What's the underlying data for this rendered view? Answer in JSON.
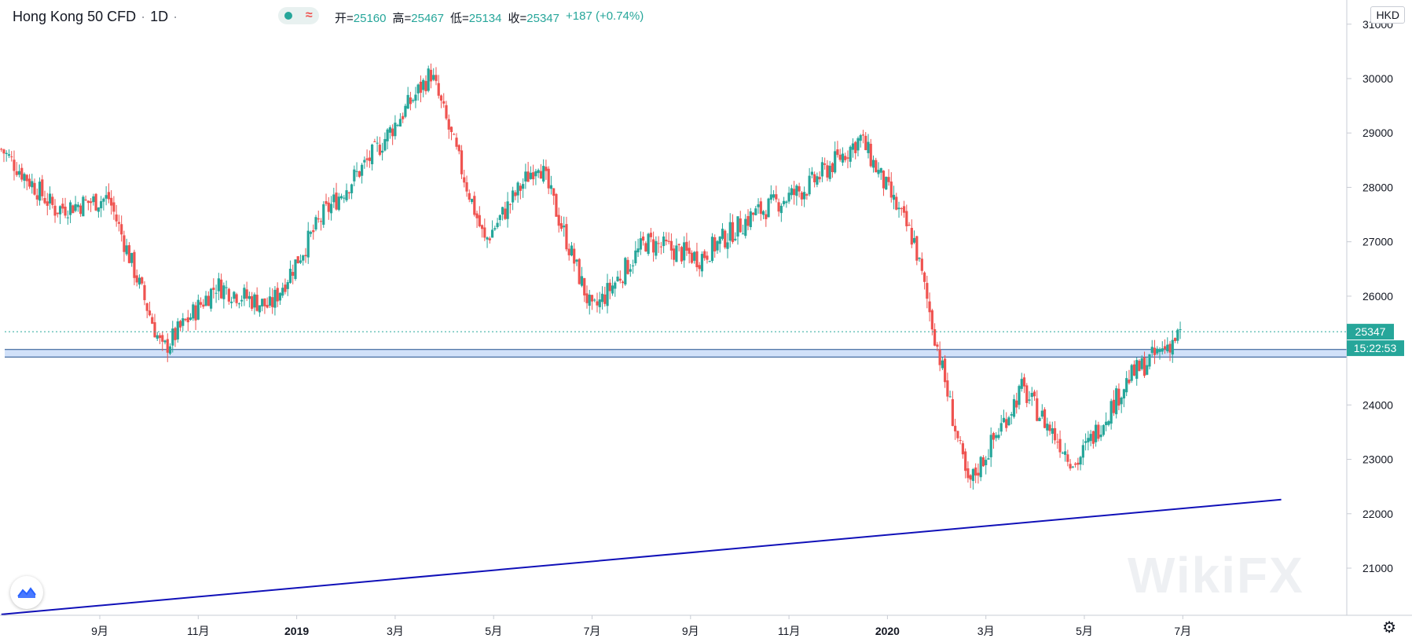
{
  "header": {
    "symbol": "Hong Kong 50 CFD",
    "interval": "1D",
    "ohlc": [
      {
        "label": "开",
        "value": "25160"
      },
      {
        "label": "高",
        "value": "25467"
      },
      {
        "label": "低",
        "value": "25134"
      },
      {
        "label": "收",
        "value": "25347"
      }
    ],
    "change": "+187 (+0.74%)",
    "currency": "HKD"
  },
  "price_label": "25347",
  "countdown_label": "15:22:53",
  "colors": {
    "up": "#26a69a",
    "down": "#ef5350",
    "trendline": "#1010b8",
    "zone": "#c6daf7",
    "zone_border": "#1f4e8c"
  },
  "icons": {
    "logo": "chart-logo-icon",
    "settings": "gear-icon"
  },
  "chart_data": {
    "type": "candlestick",
    "title": "Hong Kong 50 CFD · 1D",
    "y_axis_ticks": [
      21000,
      22000,
      23000,
      24000,
      25000,
      26000,
      27000,
      28000,
      29000,
      30000,
      31000
    ],
    "ylim": [
      20100,
      31400
    ],
    "x_axis_labels": [
      "9月",
      "11月",
      "2019",
      "3月",
      "5月",
      "7月",
      "9月",
      "11月",
      "2020",
      "3月",
      "5月",
      "7月"
    ],
    "key_points": [
      {
        "date": "2018-07",
        "close": 28700
      },
      {
        "date": "2018-08",
        "close": 27600
      },
      {
        "date": "2018-09",
        "close": 27800
      },
      {
        "date": "2018-10",
        "close": 25000
      },
      {
        "date": "2018-11",
        "close": 26200
      },
      {
        "date": "2018-12",
        "close": 25800
      },
      {
        "date": "2019-01",
        "close": 27500
      },
      {
        "date": "2019-02",
        "close": 28700
      },
      {
        "date": "2019-04",
        "close": 30100
      },
      {
        "date": "2019-05",
        "close": 27000
      },
      {
        "date": "2019-06",
        "close": 28500
      },
      {
        "date": "2019-08",
        "close": 25700
      },
      {
        "date": "2019-09",
        "close": 27000
      },
      {
        "date": "2019-10",
        "close": 26700
      },
      {
        "date": "2019-11",
        "close": 27500
      },
      {
        "date": "2019-12",
        "close": 28000
      },
      {
        "date": "2020-01",
        "close": 28900
      },
      {
        "date": "2020-02",
        "close": 27000
      },
      {
        "date": "2020-03",
        "close": 22500
      },
      {
        "date": "2020-04",
        "close": 24300
      },
      {
        "date": "2020-05",
        "close": 22900
      },
      {
        "date": "2020-06",
        "close": 24500
      },
      {
        "date": "2020-07",
        "close": 25347
      }
    ],
    "last_price": 25347,
    "support_zone": [
      24880,
      25020
    ],
    "trendline": {
      "from": {
        "date": "2018-07",
        "price": 20150
      },
      "to": {
        "date": "2020-09",
        "price": 22260
      }
    }
  }
}
